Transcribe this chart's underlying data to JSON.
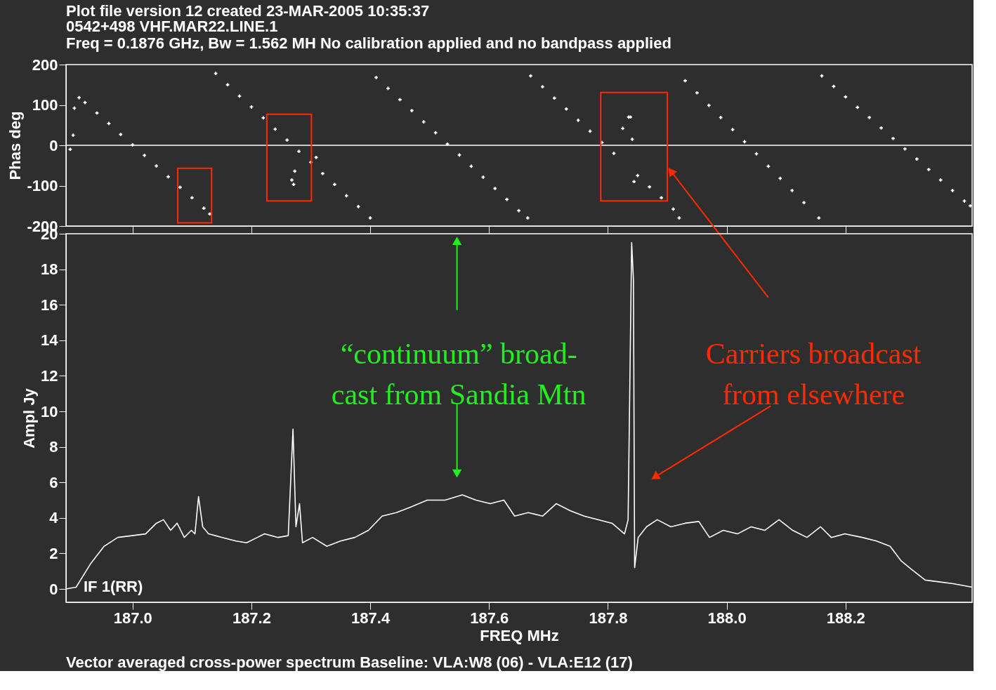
{
  "chart_data": [
    {
      "type": "scatter",
      "title": "Plot file version 12  created 23-MAR-2005 10:35:37",
      "subtitle": "0542+498   VHF.MAR22.LINE.1\nFreq = 0.1876 GHz, Bw = 1.562 MH   No calibration applied and no bandpass applied",
      "ylabel": "Phas deg",
      "x": [
        186.895,
        186.9,
        186.902,
        186.91,
        186.92,
        186.94,
        186.96,
        186.98,
        187.0,
        187.02,
        187.04,
        187.06,
        187.08,
        187.1,
        187.12,
        187.13,
        187.14,
        187.16,
        187.18,
        187.2,
        187.22,
        187.24,
        187.26,
        187.268,
        187.271,
        187.273,
        187.28,
        187.3,
        187.309,
        187.32,
        187.34,
        187.36,
        187.38,
        187.4,
        187.41,
        187.43,
        187.45,
        187.47,
        187.49,
        187.51,
        187.53,
        187.55,
        187.57,
        187.59,
        187.61,
        187.63,
        187.65,
        187.665,
        187.67,
        187.69,
        187.71,
        187.73,
        187.75,
        187.77,
        187.79,
        187.81,
        187.825,
        187.835,
        187.838,
        187.841,
        187.844,
        187.85,
        187.87,
        187.89,
        187.91,
        187.92,
        187.93,
        187.95,
        187.97,
        187.99,
        188.01,
        188.03,
        188.05,
        188.07,
        188.09,
        188.11,
        188.13,
        188.155,
        188.16,
        188.18,
        188.2,
        188.22,
        188.24,
        188.26,
        188.28,
        188.3,
        188.32,
        188.34,
        188.36,
        188.38,
        188.4,
        188.41
      ],
      "values": [
        -10,
        25,
        92,
        118,
        106,
        80,
        54,
        27,
        1,
        -25,
        -51,
        -78,
        -104,
        -130,
        -156,
        -170,
        178,
        150,
        122,
        95,
        68,
        40,
        13,
        -86,
        -97,
        -64,
        -15,
        -42,
        -30,
        -70,
        -97,
        -125,
        -152,
        -180,
        168,
        141,
        113,
        86,
        58,
        31,
        3,
        -24,
        -52,
        -79,
        -107,
        -134,
        -162,
        -180,
        172,
        145,
        117,
        90,
        62,
        35,
        7,
        -20,
        42,
        70,
        70,
        15,
        -90,
        -75,
        -103,
        -130,
        -158,
        -180,
        160,
        130,
        99,
        69,
        39,
        9,
        -21,
        -52,
        -82,
        -112,
        -142,
        -180,
        172,
        146,
        120,
        94,
        69,
        43,
        17,
        -9,
        -34,
        -60,
        -86,
        -112,
        -138,
        -150
      ],
      "color": "#ffffff",
      "marker": "cross",
      "xlim": [
        186.888,
        188.413
      ],
      "ylim": [
        -200,
        200
      ],
      "yticks": [
        -200,
        -100,
        0,
        100,
        200
      ],
      "tick_labels": "y",
      "ref_lines": [
        {
          "axis": "y",
          "value": 0,
          "color": "#ffffff"
        }
      ],
      "grid": false
    },
    {
      "type": "line",
      "xlabel": "FREQ   MHz",
      "ylabel": "Ampl Jy",
      "x": [
        186.888,
        186.905,
        186.929,
        186.952,
        186.975,
        186.999,
        187.022,
        187.04,
        187.052,
        187.064,
        187.075,
        187.087,
        187.099,
        187.105,
        187.111,
        187.118,
        187.128,
        187.151,
        187.174,
        187.192,
        187.21,
        187.222,
        187.245,
        187.262,
        187.27,
        187.275,
        187.281,
        187.286,
        187.303,
        187.327,
        187.35,
        187.374,
        187.397,
        187.42,
        187.444,
        187.467,
        187.496,
        187.526,
        187.555,
        187.578,
        187.602,
        187.625,
        187.643,
        187.666,
        187.69,
        187.713,
        187.737,
        187.76,
        187.783,
        187.807,
        187.828,
        187.834,
        187.84,
        187.843,
        187.845,
        187.851,
        187.865,
        187.883,
        187.906,
        187.93,
        187.953,
        187.971,
        187.994,
        188.018,
        188.041,
        188.064,
        188.088,
        188.111,
        188.135,
        188.158,
        188.176,
        188.199,
        188.228,
        188.252,
        188.275,
        188.293,
        188.311,
        188.334,
        188.357,
        188.381,
        188.413
      ],
      "values": [
        0,
        0.1,
        1.4,
        2.4,
        2.9,
        3.0,
        3.1,
        3.7,
        3.9,
        3.3,
        3.7,
        2.9,
        3.3,
        3.1,
        5.2,
        3.5,
        3.1,
        2.9,
        2.7,
        2.6,
        2.9,
        3.1,
        2.9,
        3.0,
        9.0,
        3.5,
        4.8,
        2.6,
        2.9,
        2.4,
        2.7,
        2.9,
        3.3,
        4.1,
        4.3,
        4.6,
        5.0,
        5.0,
        5.3,
        5.0,
        4.8,
        5.0,
        4.1,
        4.3,
        4.1,
        4.8,
        4.4,
        4.1,
        3.9,
        3.7,
        3.1,
        3.9,
        19.5,
        17.4,
        1.2,
        2.9,
        3.5,
        3.9,
        3.5,
        3.7,
        3.8,
        2.9,
        3.3,
        3.1,
        3.5,
        3.3,
        3.9,
        3.3,
        2.9,
        3.5,
        2.9,
        3.1,
        2.9,
        2.7,
        2.4,
        1.6,
        1.1,
        0.5,
        0.4,
        0.3,
        0.1
      ],
      "color": "#ffffff",
      "marker": "none",
      "xlim": [
        186.888,
        188.413
      ],
      "xticks": [
        {
          "value": 187,
          "label": "187.0"
        },
        187.2,
        187.4,
        187.6,
        187.8,
        {
          "value": 188,
          "label": "188.0"
        },
        188.2
      ],
      "ylim": [
        -0.75,
        20
      ],
      "yticks": [
        0,
        2,
        4,
        6,
        8,
        10,
        12,
        14,
        16,
        18,
        20
      ],
      "annotations": [
        "IF 1(RR)",
        "“continuum” broad-\ncast from Sandia Mtn",
        "Carriers broadcast\nfrom elsewhere",
        "Vector averaged cross-power spectrum    Baseline: VLA:W8 (06) - VLA:E12 (17)"
      ],
      "grid": false
    }
  ]
}
